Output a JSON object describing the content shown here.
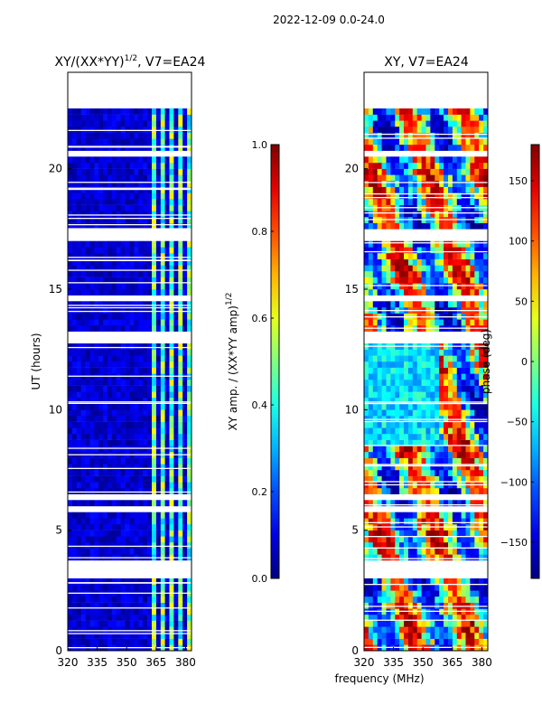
{
  "page_title": "2022-12-09 0.0-24.0",
  "colors": {
    "jet_low": "#00007f",
    "jet_high": "#7f0000",
    "gap": "#ffffff"
  },
  "chart_data": [
    {
      "type": "heatmap",
      "title": "XY/(XX*YY)^{1/2}, V7=EA24",
      "title_main": "XY/(XX*YY)",
      "title_sup": "1/2",
      "title_rest": ", V7=EA24",
      "xlabel": "",
      "ylabel": "UT (hours)",
      "xlim": [
        320,
        383
      ],
      "ylim": [
        0,
        24
      ],
      "x_ticks": [
        320,
        335,
        350,
        365,
        380
      ],
      "y_ticks": [
        0,
        5,
        10,
        15,
        20
      ],
      "data_extent_hours": [
        0,
        22.5
      ],
      "gap_rows_hours": [
        3.0,
        3.1,
        3.2,
        3.3,
        3.4,
        3.5,
        5.8,
        6.3,
        12.8,
        13.0,
        14.6,
        17.0,
        17.1,
        17.3,
        20.5
      ],
      "hot_columns_mhz": [
        [
          362,
          365
        ],
        [
          368,
          370
        ],
        [
          372,
          374
        ],
        [
          377,
          378
        ],
        [
          380,
          382
        ]
      ],
      "colorbar": {
        "label": "XY amp. / (XX*YY amp)^{1/2}",
        "label_main": "XY amp. / (XX*YY amp)",
        "label_sup": "1/2",
        "min": 0.0,
        "max": 1.0,
        "ticks": [
          "0.0",
          "0.2",
          "0.4",
          "0.6",
          "0.8",
          "1.0"
        ]
      }
    },
    {
      "type": "heatmap",
      "title": "XY, V7=EA24",
      "xlabel": "frequency (MHz)",
      "ylabel": "",
      "xlim": [
        320,
        383
      ],
      "ylim": [
        0,
        24
      ],
      "x_ticks": [
        320,
        335,
        350,
        365,
        380
      ],
      "y_ticks": [
        0,
        5,
        10,
        15,
        20
      ],
      "data_extent_hours": [
        0,
        22.5
      ],
      "gap_rows_hours": [
        3.0,
        3.1,
        3.2,
        3.3,
        3.4,
        3.5,
        5.8,
        6.3,
        12.8,
        13.0,
        14.6,
        17.0,
        17.1,
        17.3,
        20.5
      ],
      "colorbar": {
        "label": "phase (deg)",
        "min": -180,
        "max": 180,
        "ticks": [
          "−150",
          "−100",
          "−50",
          "0",
          "50",
          "100",
          "150"
        ],
        "tick_values": [
          -150,
          -100,
          -50,
          0,
          50,
          100,
          150
        ]
      }
    }
  ]
}
